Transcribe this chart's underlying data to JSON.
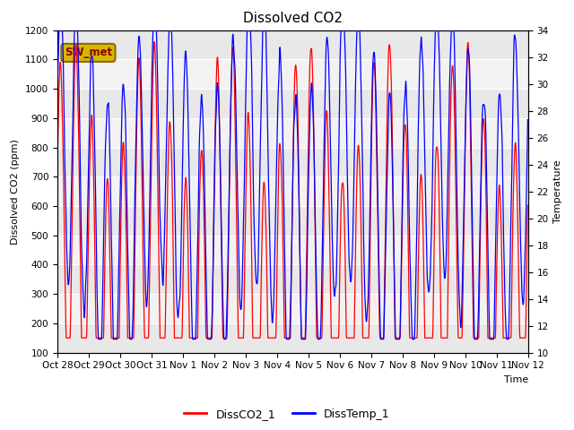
{
  "title": "Dissolved CO2",
  "xlabel": "Time",
  "ylabel_left": "Dissolved CO2 (ppm)",
  "ylabel_right": "Temperature",
  "ylim_left": [
    100,
    1200
  ],
  "ylim_right": [
    10,
    34
  ],
  "legend_labels": [
    "DissCO2_1",
    "DissTemp_1"
  ],
  "annotation_text": "SW_met",
  "annotation_bg": "#d4b800",
  "annotation_border": "#8b6914",
  "title_fontsize": 11,
  "axis_fontsize": 8,
  "tick_fontsize": 7.5,
  "band_colors": [
    "#e8e8e8",
    "#f2f2f2"
  ],
  "xtick_labels": [
    "Oct 28",
    "Oct 29",
    "Oct 30",
    "Oct 31",
    "Nov 1",
    "Nov 2",
    "Nov 3",
    "Nov 4",
    "Nov 5",
    "Nov 6",
    "Nov 7",
    "Nov 8",
    "Nov 9",
    "Nov 10",
    "Nov 11",
    "Nov 12"
  ],
  "yticks_left": [
    100,
    200,
    300,
    400,
    500,
    600,
    700,
    800,
    900,
    1000,
    1100,
    1200
  ],
  "yticks_right": [
    10,
    12,
    14,
    16,
    18,
    20,
    22,
    24,
    26,
    28,
    30,
    32,
    34
  ]
}
